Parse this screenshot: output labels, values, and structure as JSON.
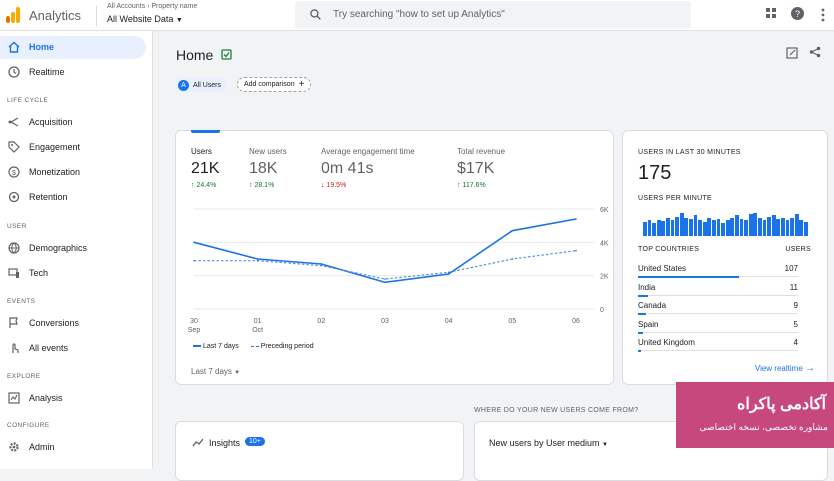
{
  "header": {
    "brand": "Analytics",
    "account_label": "All Accounts",
    "property_label": "Property name",
    "property_value": "All Website Data",
    "search_placeholder": "Try searching \"how to set up Analytics\""
  },
  "sidebar": {
    "home": "Home",
    "realtime": "Realtime",
    "sections": {
      "lifecycle": "LIFE CYCLE",
      "user": "USER",
      "events": "EVENTS",
      "explore": "EXPLORE",
      "configure": "CONFIGURE"
    },
    "acquisition": "Acquisition",
    "engagement": "Engagement",
    "monetization": "Monetization",
    "retention": "Retention",
    "demographics": "Demographics",
    "tech": "Tech",
    "conversions": "Conversions",
    "all_events": "All events",
    "analysis": "Analysis",
    "admin": "Admin"
  },
  "main": {
    "title": "Home",
    "all_users_chip": "All Users",
    "all_users_avatar": "A",
    "add_comparison": "Add comparison"
  },
  "metrics": [
    {
      "label": "Users",
      "value": "21K",
      "delta": "↑ 24.4%",
      "dir": "up"
    },
    {
      "label": "New users",
      "value": "18K",
      "delta": "↑ 28.1%",
      "dir": "up"
    },
    {
      "label": "Average engagement time",
      "value": "0m 41s",
      "delta": "↓ 19.5%",
      "dir": "down"
    },
    {
      "label": "Total revenue",
      "value": "$17K",
      "delta": "↑ 117.6%",
      "dir": "up"
    }
  ],
  "chart_data": {
    "type": "line",
    "x": [
      "30 Sep",
      "01 Oct",
      "02",
      "03",
      "04",
      "05",
      "06"
    ],
    "series": [
      {
        "name": "Last 7 days",
        "values": [
          4000,
          3000,
          2700,
          1600,
          2100,
          4700,
          5400
        ]
      },
      {
        "name": "Preceding period",
        "values": [
          2900,
          2900,
          2600,
          1800,
          2200,
          3000,
          3500
        ]
      }
    ],
    "ylim": [
      0,
      6000
    ],
    "yticks": [
      "0",
      "2K",
      "4K",
      "6K"
    ],
    "legend": "bottom-left"
  },
  "chart_footer": {
    "range": "Last 7 days"
  },
  "realtime": {
    "header": "USERS IN LAST 30 MINUTES",
    "value": "175",
    "per_minute": "USERS PER MINUTE",
    "top_countries": "TOP COUNTRIES",
    "users_col": "USERS",
    "countries": [
      {
        "name": "United States",
        "value": "107",
        "frac": 0.63
      },
      {
        "name": "India",
        "value": "11",
        "frac": 0.06
      },
      {
        "name": "Canada",
        "value": "9",
        "frac": 0.05
      },
      {
        "name": "Spain",
        "value": "5",
        "frac": 0.03
      },
      {
        "name": "United Kingdom",
        "value": "4",
        "frac": 0.02
      }
    ],
    "link": "View realtime",
    "bars": [
      0.55,
      0.6,
      0.5,
      0.62,
      0.58,
      0.7,
      0.6,
      0.75,
      0.9,
      0.7,
      0.65,
      0.8,
      0.6,
      0.55,
      0.7,
      0.6,
      0.65,
      0.5,
      0.6,
      0.7,
      0.8,
      0.65,
      0.6,
      0.85,
      0.9,
      0.7,
      0.6,
      0.75,
      0.8,
      0.65,
      0.7,
      0.6,
      0.7,
      0.85,
      0.6,
      0.55
    ]
  },
  "insights": {
    "label": "Insights",
    "badge": "10+"
  },
  "new_users": {
    "section": "WHERE DO YOUR NEW USERS COME FROM?",
    "selector": "New users by User medium"
  },
  "overlay": {
    "title": "آکادمی پاکراه",
    "subtitle": "مشاوره تخصصی، نسخه اختصاصی"
  }
}
